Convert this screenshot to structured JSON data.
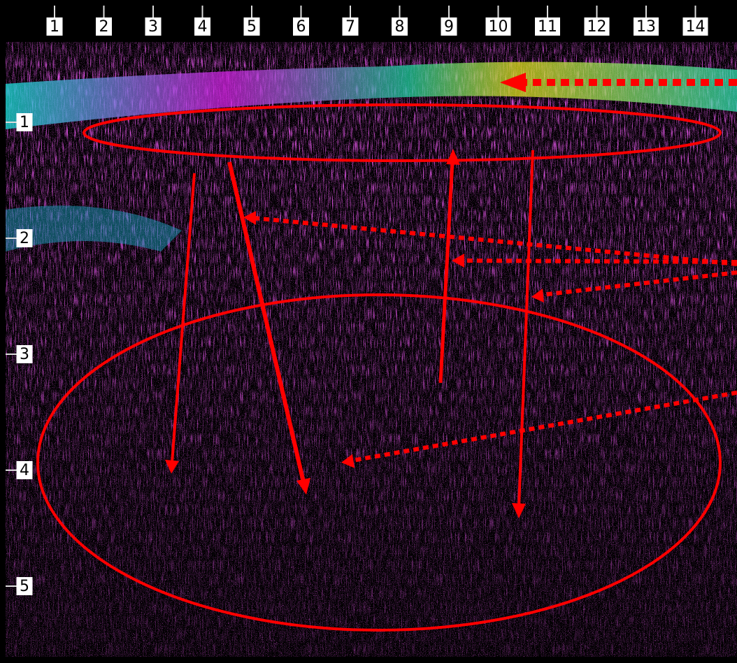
{
  "top_scale": [
    1,
    2,
    3,
    4,
    5,
    6,
    7,
    8,
    9,
    10,
    11,
    12,
    13,
    14
  ],
  "left_scale": [
    1,
    2,
    3,
    4,
    5
  ]
}
